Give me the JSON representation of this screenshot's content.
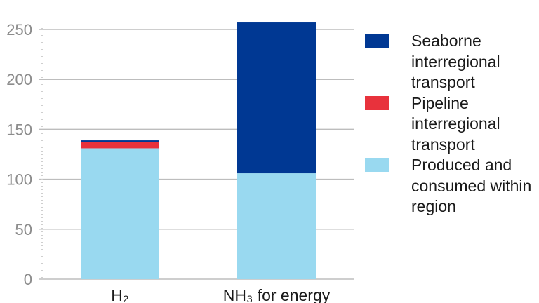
{
  "chart_data": {
    "type": "bar",
    "stacked": true,
    "categories": [
      "H₂",
      "NH₃ for energy"
    ],
    "series": [
      {
        "name": "Produced and consumed within region",
        "color": "#99d9f0",
        "values": [
          131,
          106
        ]
      },
      {
        "name": "Pipeline interregional transport",
        "color": "#e8323c",
        "values": [
          6,
          0
        ]
      },
      {
        "name": "Seaborne interregional transport",
        "color": "#003893",
        "values": [
          2,
          151
        ]
      }
    ],
    "ylim": [
      0,
      250
    ],
    "yticks": [
      0,
      50,
      100,
      150,
      200,
      250
    ],
    "grid": true,
    "legend_position": "right"
  },
  "legend": [
    {
      "label": "Seaborne interregional transport",
      "color": "#003893"
    },
    {
      "label": "Pipeline interregional transport",
      "color": "#e8323c"
    },
    {
      "label": "Produced and consumed within region",
      "color": "#99d9f0"
    }
  ]
}
